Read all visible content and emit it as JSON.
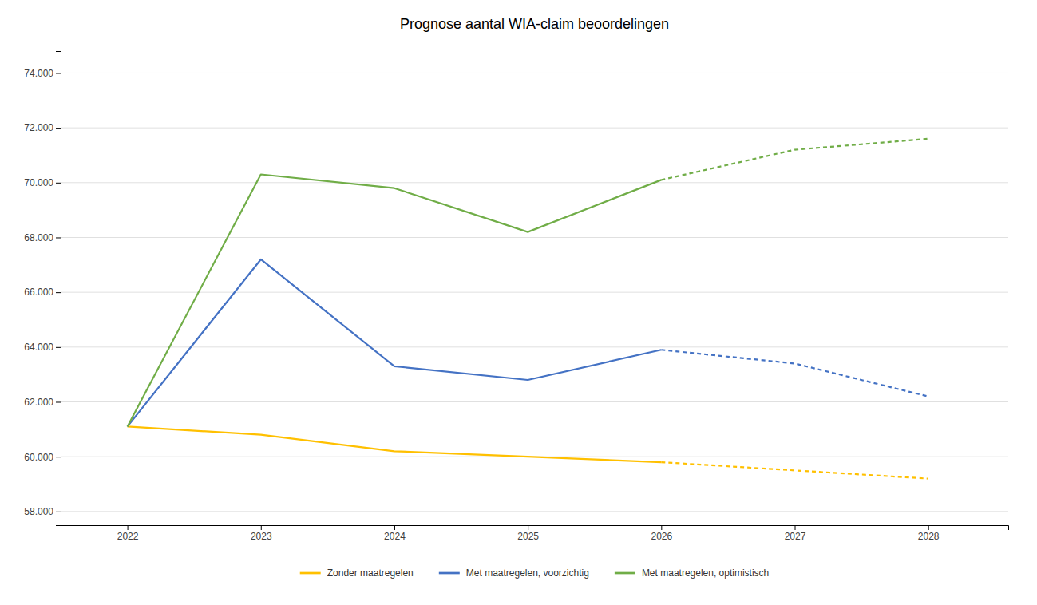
{
  "chart_data": {
    "type": "line",
    "title": "Prognose aantal WIA-claim beoordelingen",
    "x": [
      2022,
      2023,
      2024,
      2025,
      2026,
      2027,
      2028
    ],
    "series": [
      {
        "name": "Zonder maatregelen",
        "color": "#FFC000",
        "line_style": "solid",
        "values": [
          61100,
          60800,
          60200,
          60000,
          59800,
          null,
          null
        ]
      },
      {
        "name": "Met maatregelen, voorzichtig",
        "color": "#4472C4",
        "line_style": "solid",
        "values": [
          61100,
          67200,
          63300,
          62800,
          63900,
          null,
          null
        ]
      },
      {
        "name": "Met maatregelen, optimistisch",
        "color": "#70AD47",
        "line_style": "solid",
        "values": [
          61100,
          70300,
          69800,
          68200,
          70100,
          null,
          null
        ]
      },
      {
        "color": "#FFC000",
        "line_style": "dashed",
        "values": [
          null,
          null,
          null,
          null,
          59800,
          59500,
          59200
        ]
      },
      {
        "color": "#4472C4",
        "line_style": "dashed",
        "values": [
          null,
          null,
          null,
          null,
          63900,
          63400,
          62200
        ]
      },
      {
        "color": "#70AD47",
        "line_style": "dashed",
        "values": [
          null,
          null,
          null,
          null,
          70100,
          71200,
          71600
        ]
      }
    ],
    "xlim": [
      2021.5,
      2028.6
    ],
    "xticks": [
      2022,
      2023,
      2024,
      2025,
      2026,
      2027,
      2028
    ],
    "ylim": [
      57500,
      74800
    ],
    "yticks": [
      {
        "value": 58000,
        "label": "58.000"
      },
      {
        "value": 60000,
        "label": "60.000"
      },
      {
        "value": 62000,
        "label": "62.000"
      },
      {
        "value": 64000,
        "label": "64.000"
      },
      {
        "value": 66000,
        "label": "66.000"
      },
      {
        "value": 68000,
        "label": "68.000"
      },
      {
        "value": 70000,
        "label": "70.000"
      },
      {
        "value": 72000,
        "label": "72.000"
      },
      {
        "value": 74000,
        "label": "74.000"
      }
    ],
    "grid": true,
    "legend": "bottom"
  }
}
